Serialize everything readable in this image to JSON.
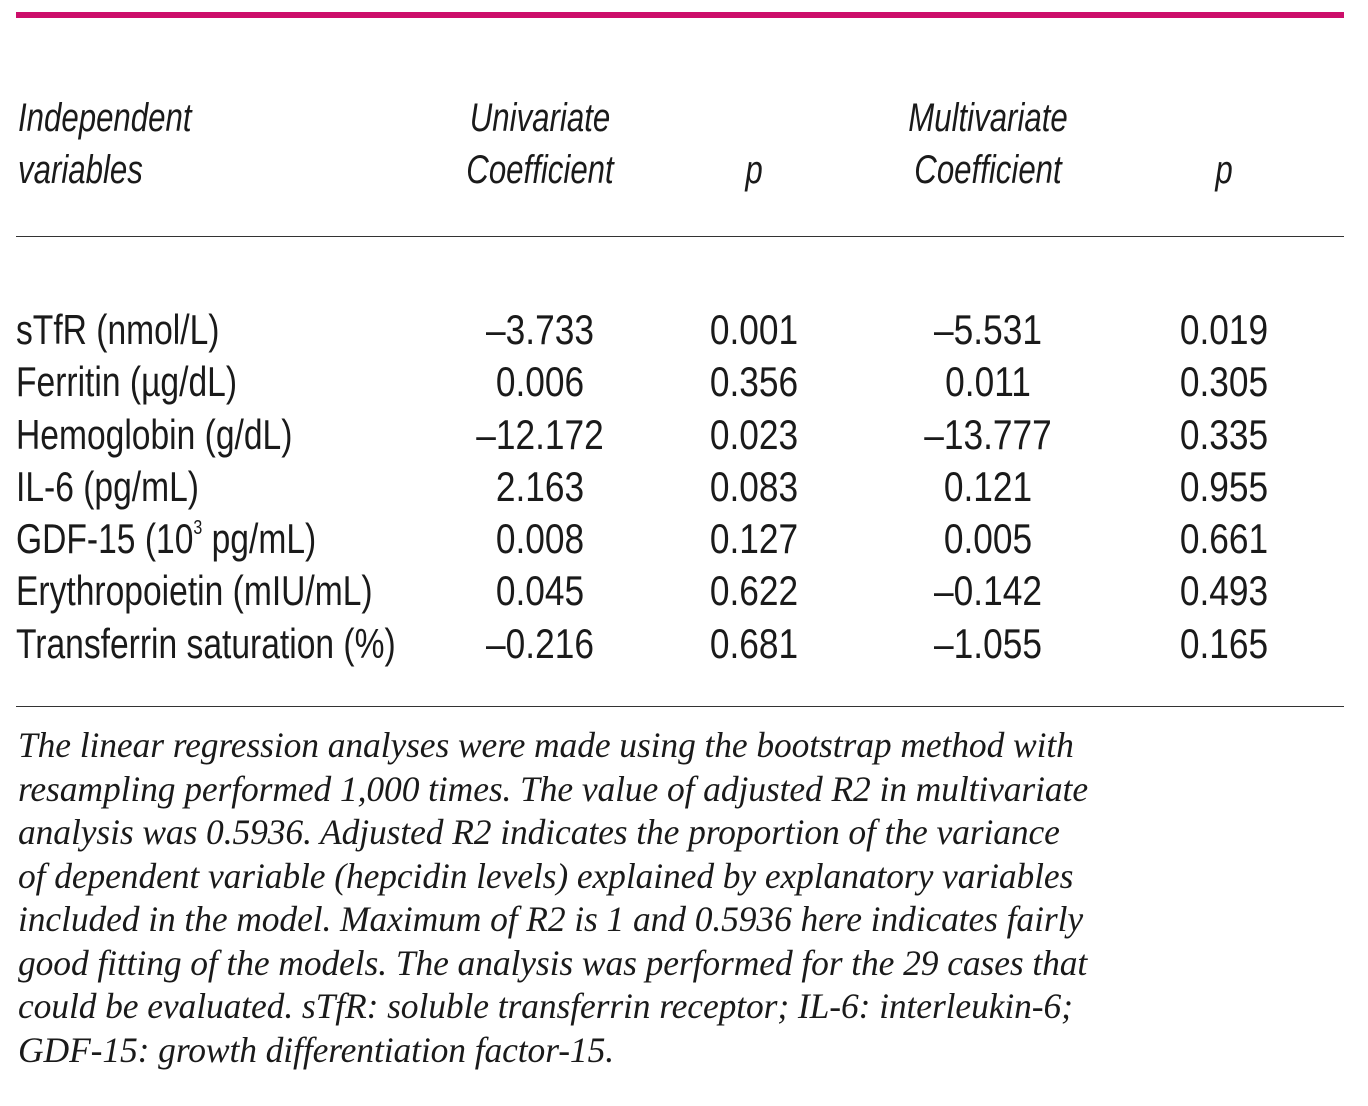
{
  "header": {
    "col1_line1": "Independent",
    "col1_line2": "variables",
    "univariate_line1": "Univariate",
    "univariate_line2": "Coefficient",
    "p1": "p",
    "multivariate_line1": "Multivariate",
    "multivariate_line2": "Coefficient",
    "p2": "p"
  },
  "rows": [
    {
      "label": "sTfR (nmol/L)",
      "uni": "–3.733",
      "p1": "0.001",
      "multi": "–5.531",
      "p2": "0.019"
    },
    {
      "label": "Ferritin (µg/dL)",
      "uni": "0.006",
      "p1": "0.356",
      "multi": "0.011",
      "p2": "0.305"
    },
    {
      "label": "Hemoglobin (g/dL)",
      "uni": "–12.172",
      "p1": "0.023",
      "multi": "–13.777",
      "p2": "0.335"
    },
    {
      "label": "IL-6 (pg/mL)",
      "uni": "2.163",
      "p1": "0.083",
      "multi": "0.121",
      "p2": "0.955"
    },
    {
      "label_pre": "GDF-15 (10",
      "label_sup": "3",
      "label_post": " pg/mL)",
      "uni": "0.008",
      "p1": "0.127",
      "multi": "0.005",
      "p2": "0.661"
    },
    {
      "label": "Erythropoietin (mIU/mL)",
      "uni": "0.045",
      "p1": "0.622",
      "multi": "–0.142",
      "p2": "0.493"
    },
    {
      "label": "Transferrin saturation (%)",
      "uni": "–0.216",
      "p1": "0.681",
      "multi": "–1.055",
      "p2": "0.165"
    }
  ],
  "footnote": [
    "The linear regression analyses were made using the bootstrap method with",
    "resampling performed 1,000 times. The value of adjusted R2 in multivariate",
    "analysis was 0.5936. Adjusted R2 indicates the proportion of the variance",
    "of dependent variable (hepcidin levels) explained by explanatory variables",
    "included in the model. Maximum of R2 is 1 and 0.5936 here indicates fairly",
    "good fitting of the models. The analysis was performed for the 29 cases that",
    "could be evaluated. sTfR: soluble transferrin receptor; IL-6: interleukin-6;",
    "GDF-15: growth differentiation factor-15."
  ],
  "colors": {
    "accent_rule": "#cc0e6a"
  }
}
